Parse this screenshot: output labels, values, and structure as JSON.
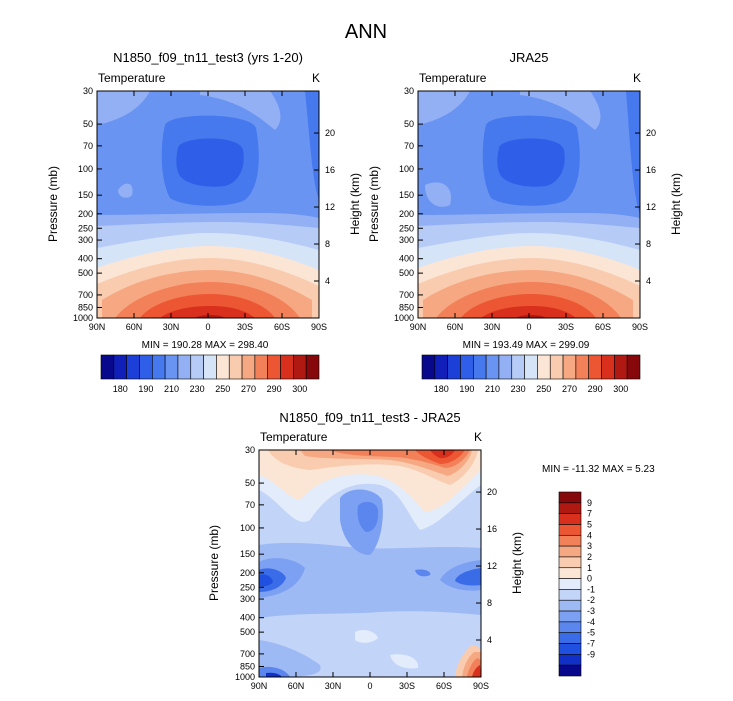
{
  "figure": {
    "title": "ANN"
  },
  "colors": {
    "abs_scale": [
      "#08088c",
      "#0f1fb8",
      "#1c3fd8",
      "#2f5fe8",
      "#4678ee",
      "#6a94f2",
      "#93b0f4",
      "#b6ccf6",
      "#d6e4f8",
      "#fbe6d6",
      "#f9ccb0",
      "#f6a882",
      "#f28058",
      "#ec5632",
      "#d8301c",
      "#b01812",
      "#86080a"
    ],
    "diff_scale": [
      "#08088c",
      "#1030c8",
      "#2050e0",
      "#3a6ce8",
      "#5a86ee",
      "#7ca0f2",
      "#9ebaf4",
      "#c2d4f8",
      "#e2ecfa",
      "#fbe6d6",
      "#f9ccb0",
      "#f6a882",
      "#f28058",
      "#ec5632",
      "#d8301c",
      "#b01812",
      "#86080a"
    ]
  },
  "chart_data": [
    {
      "type": "heatmap",
      "id": "model",
      "title": "N1850_f09_tn11_test3 (yrs 1-20)",
      "field_label": "Temperature",
      "units": "K",
      "ylabel": "Pressure (mb)",
      "ylabel_right": "Height (km)",
      "xticks": [
        "90N",
        "60N",
        "30N",
        "0",
        "30S",
        "60S",
        "90S"
      ],
      "yticks": [
        30,
        50,
        70,
        100,
        150,
        200,
        250,
        300,
        400,
        500,
        700,
        850,
        1000
      ],
      "ylim": [
        30,
        1000
      ],
      "height_ticks": [
        4,
        8,
        12,
        16,
        20
      ],
      "min": "190.28",
      "max": "298.40",
      "minmax_text": "MIN = 190.28   MAX = 298.40",
      "colorbar_labels": [
        "180",
        "190",
        "210",
        "230",
        "250",
        "270",
        "290",
        "300"
      ]
    },
    {
      "type": "heatmap",
      "id": "obs",
      "title": "JRA25",
      "field_label": "Temperature",
      "units": "K",
      "ylabel": "Pressure (mb)",
      "ylabel_right": "Height (km)",
      "xticks": [
        "90N",
        "60N",
        "30N",
        "0",
        "30S",
        "60S",
        "90S"
      ],
      "yticks": [
        30,
        50,
        70,
        100,
        150,
        200,
        250,
        300,
        400,
        500,
        700,
        850,
        1000
      ],
      "ylim": [
        30,
        1000
      ],
      "height_ticks": [
        4,
        8,
        12,
        16,
        20
      ],
      "min": "193.49",
      "max": "299.09",
      "minmax_text": "MIN = 193.49   MAX = 299.09",
      "colorbar_labels": [
        "180",
        "190",
        "210",
        "230",
        "250",
        "270",
        "290",
        "300"
      ]
    },
    {
      "type": "heatmap",
      "id": "diff",
      "title": "N1850_f09_tn11_test3 - JRA25",
      "field_label": "Temperature",
      "units": "K",
      "ylabel": "Pressure (mb)",
      "ylabel_right": "Height (km)",
      "xticks": [
        "90N",
        "60N",
        "30N",
        "0",
        "30S",
        "60S",
        "90S"
      ],
      "yticks": [
        30,
        50,
        70,
        100,
        150,
        200,
        250,
        300,
        400,
        500,
        700,
        850,
        1000
      ],
      "ylim": [
        30,
        1000
      ],
      "height_ticks": [
        4,
        8,
        12,
        16,
        20
      ],
      "min": "-11.32",
      "max": "5.23",
      "minmax_text": "MIN = -11.32   MAX =   5.23",
      "colorbar_labels": [
        "9",
        "7",
        "5",
        "4",
        "3",
        "2",
        "1",
        "0",
        "-1",
        "-2",
        "-3",
        "-4",
        "-5",
        "-7",
        "-9"
      ]
    }
  ]
}
